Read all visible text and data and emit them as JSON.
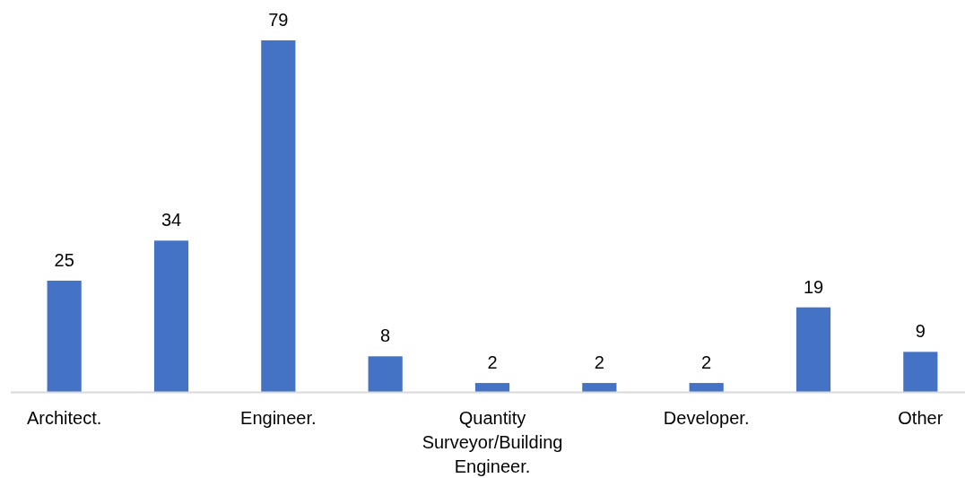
{
  "chart_data": {
    "type": "bar",
    "categories": [
      "Architect.",
      null,
      "Engineer.",
      null,
      "Quantity Surveyor/Building Engineer.",
      null,
      "Developer.",
      null,
      "Other"
    ],
    "values": [
      25,
      34,
      79,
      8,
      2,
      2,
      2,
      19,
      9
    ],
    "color": "#4472c4",
    "data_labels": true
  }
}
